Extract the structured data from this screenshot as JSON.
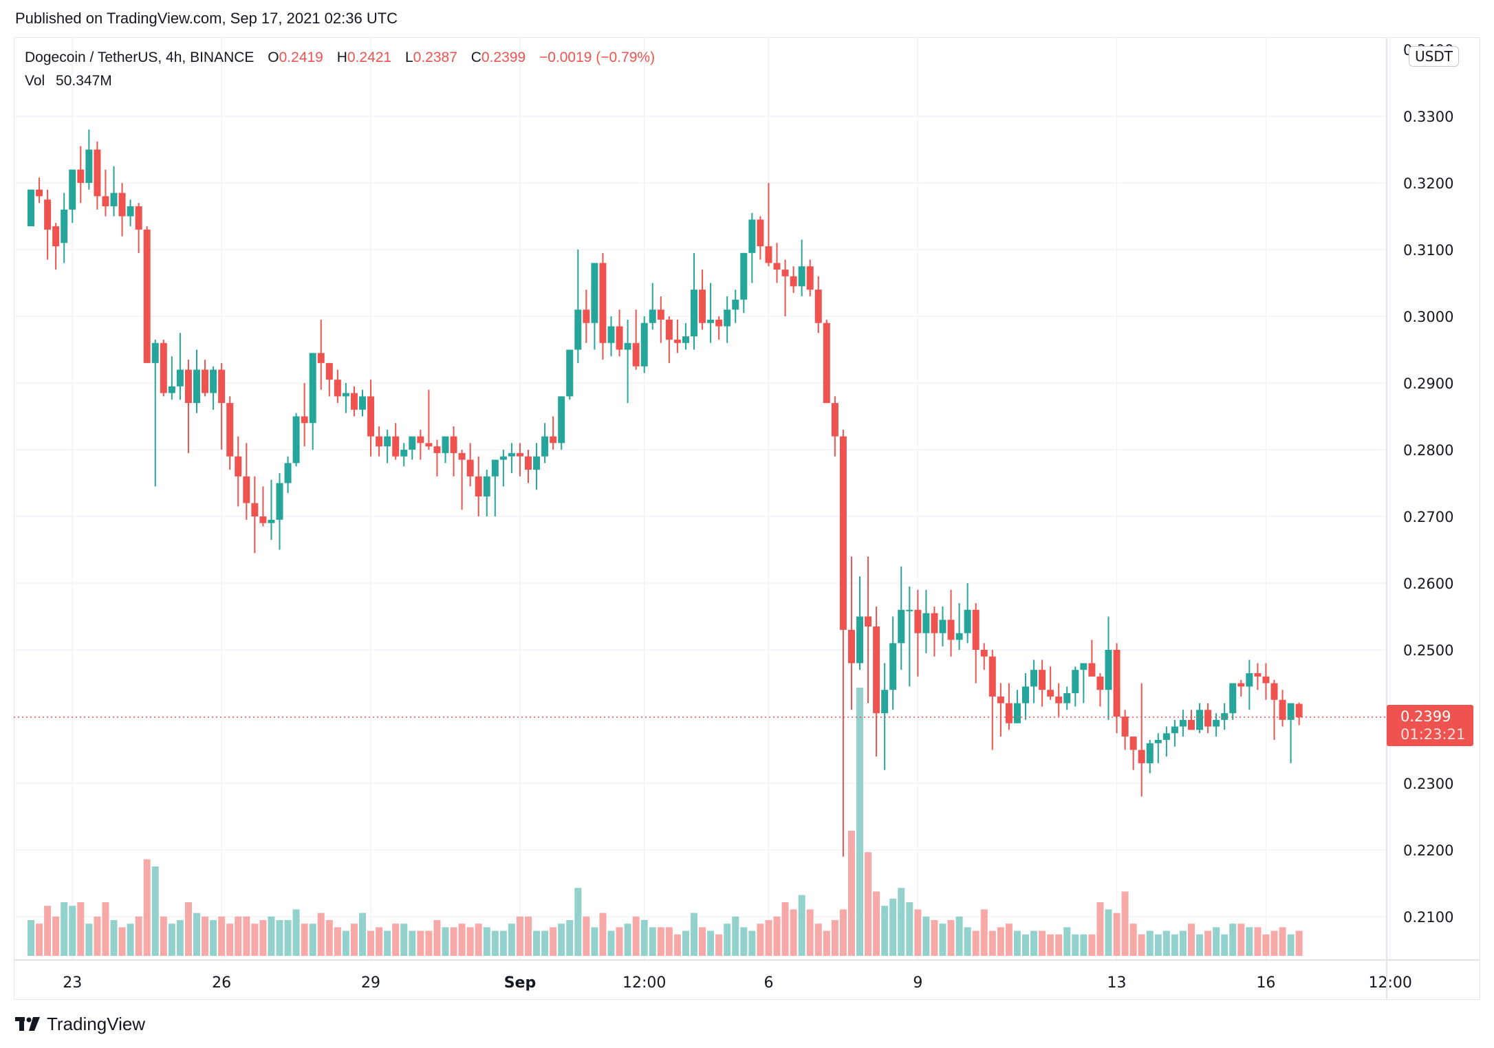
{
  "header": {
    "published": "Published on TradingView.com, Sep 17, 2021 02:36 UTC"
  },
  "legend": {
    "symbol": "Dogecoin / TetherUS, 4h, BINANCE",
    "o_label": "O",
    "o": "0.2419",
    "h_label": "H",
    "h": "0.2421",
    "l_label": "L",
    "l": "0.2387",
    "c_label": "C",
    "c": "0.2399",
    "change": "−0.0019 (−0.79%)",
    "vol_label": "Vol",
    "vol": "50.347M"
  },
  "currency_badge": "USDT",
  "price_tag": {
    "price": "0.2399",
    "countdown": "01:23:21"
  },
  "footer": {
    "brand": "TradingView"
  },
  "colors": {
    "up": "#26a69a",
    "down": "#ef5350",
    "up_vol": "#93d2cc",
    "down_vol": "#f7a9a7",
    "grid": "#f0f3fa",
    "text": "#131722"
  },
  "chart_data": {
    "type": "candlestick",
    "title": "Dogecoin / TetherUS, 4h, BINANCE",
    "ylabel": "USDT",
    "ylim": [
      0.204,
      0.342
    ],
    "y_ticks": [
      "0.3300",
      "0.3200",
      "0.3100",
      "0.3000",
      "0.2900",
      "0.2800",
      "0.2700",
      "0.2600",
      "0.2500",
      "0.2400",
      "0.2300",
      "0.2200",
      "0.2100"
    ],
    "x_ticks": [
      {
        "label": "23",
        "index": 5
      },
      {
        "label": "26",
        "index": 23
      },
      {
        "label": "29",
        "index": 41
      },
      {
        "label": "Sep",
        "index": 59
      },
      {
        "label": "12:00",
        "index": 74
      },
      {
        "label": "6",
        "index": 89
      },
      {
        "label": "9",
        "index": 107
      },
      {
        "label": "13",
        "index": 131
      },
      {
        "label": "16",
        "index": 149
      },
      {
        "label": "12:00",
        "index": 164
      }
    ],
    "last_price": 0.2399,
    "ohlc": [
      [
        0.3135,
        0.3155,
        0.3145,
        0.319
      ],
      [
        0.319,
        0.3208,
        0.317,
        0.318
      ],
      [
        0.3175,
        0.319,
        0.3085,
        0.313
      ],
      [
        0.3135,
        0.314,
        0.307,
        0.3105
      ],
      [
        0.311,
        0.3185,
        0.308,
        0.316
      ],
      [
        0.316,
        0.322,
        0.314,
        0.322
      ],
      [
        0.322,
        0.3255,
        0.317,
        0.32
      ],
      [
        0.32,
        0.328,
        0.319,
        0.325
      ],
      [
        0.325,
        0.3262,
        0.316,
        0.318
      ],
      [
        0.318,
        0.322,
        0.315,
        0.3165
      ],
      [
        0.3165,
        0.3225,
        0.315,
        0.3185
      ],
      [
        0.3185,
        0.32,
        0.312,
        0.315
      ],
      [
        0.315,
        0.3175,
        0.3135,
        0.3165
      ],
      [
        0.3165,
        0.317,
        0.3095,
        0.313
      ],
      [
        0.313,
        0.3135,
        0.299,
        0.293
      ],
      [
        0.293,
        0.2965,
        0.2745,
        0.296
      ],
      [
        0.296,
        0.2965,
        0.288,
        0.2885
      ],
      [
        0.2885,
        0.294,
        0.2875,
        0.2895
      ],
      [
        0.2895,
        0.2975,
        0.2875,
        0.292
      ],
      [
        0.292,
        0.2935,
        0.2795,
        0.287
      ],
      [
        0.287,
        0.295,
        0.2855,
        0.292
      ],
      [
        0.292,
        0.2935,
        0.288,
        0.2885
      ],
      [
        0.2885,
        0.2925,
        0.286,
        0.292
      ],
      [
        0.292,
        0.293,
        0.28,
        0.287
      ],
      [
        0.287,
        0.288,
        0.277,
        0.279
      ],
      [
        0.279,
        0.282,
        0.2715,
        0.276
      ],
      [
        0.276,
        0.281,
        0.2695,
        0.272
      ],
      [
        0.272,
        0.276,
        0.2645,
        0.27
      ],
      [
        0.27,
        0.2745,
        0.2685,
        0.269
      ],
      [
        0.269,
        0.2755,
        0.2665,
        0.2695
      ],
      [
        0.2695,
        0.2765,
        0.265,
        0.275
      ],
      [
        0.275,
        0.279,
        0.2735,
        0.278
      ],
      [
        0.278,
        0.2855,
        0.2775,
        0.285
      ],
      [
        0.285,
        0.29,
        0.2805,
        0.284
      ],
      [
        0.284,
        0.2945,
        0.28,
        0.2945
      ],
      [
        0.2945,
        0.2995,
        0.289,
        0.293
      ],
      [
        0.293,
        0.2925,
        0.288,
        0.2905
      ],
      [
        0.2905,
        0.292,
        0.287,
        0.288
      ],
      [
        0.288,
        0.29,
        0.2855,
        0.2885
      ],
      [
        0.2885,
        0.2895,
        0.285,
        0.286
      ],
      [
        0.286,
        0.289,
        0.285,
        0.288
      ],
      [
        0.288,
        0.2905,
        0.279,
        0.282
      ],
      [
        0.282,
        0.2835,
        0.279,
        0.2805
      ],
      [
        0.2805,
        0.283,
        0.278,
        0.282
      ],
      [
        0.282,
        0.284,
        0.2785,
        0.279
      ],
      [
        0.279,
        0.281,
        0.2775,
        0.28
      ],
      [
        0.28,
        0.282,
        0.2785,
        0.282
      ],
      [
        0.282,
        0.283,
        0.2785,
        0.281
      ],
      [
        0.281,
        0.289,
        0.28,
        0.2805
      ],
      [
        0.2805,
        0.2815,
        0.276,
        0.2795
      ],
      [
        0.2795,
        0.282,
        0.278,
        0.282
      ],
      [
        0.282,
        0.2835,
        0.276,
        0.2795
      ],
      [
        0.2795,
        0.28,
        0.271,
        0.2785
      ],
      [
        0.2785,
        0.281,
        0.2745,
        0.276
      ],
      [
        0.276,
        0.279,
        0.27,
        0.273
      ],
      [
        0.273,
        0.277,
        0.27,
        0.276
      ],
      [
        0.276,
        0.2785,
        0.27,
        0.2785
      ],
      [
        0.2785,
        0.28,
        0.2745,
        0.279
      ],
      [
        0.279,
        0.281,
        0.2765,
        0.2795
      ],
      [
        0.2795,
        0.281,
        0.276,
        0.279
      ],
      [
        0.279,
        0.28,
        0.275,
        0.277
      ],
      [
        0.277,
        0.281,
        0.274,
        0.279
      ],
      [
        0.279,
        0.284,
        0.278,
        0.282
      ],
      [
        0.282,
        0.285,
        0.28,
        0.281
      ],
      [
        0.281,
        0.288,
        0.28,
        0.288
      ],
      [
        0.288,
        0.295,
        0.2875,
        0.295
      ],
      [
        0.295,
        0.31,
        0.293,
        0.301
      ],
      [
        0.301,
        0.304,
        0.296,
        0.299
      ],
      [
        0.299,
        0.306,
        0.295,
        0.308
      ],
      [
        0.308,
        0.3095,
        0.2935,
        0.296
      ],
      [
        0.296,
        0.3,
        0.294,
        0.2985
      ],
      [
        0.2985,
        0.301,
        0.294,
        0.295
      ],
      [
        0.295,
        0.2995,
        0.287,
        0.296
      ],
      [
        0.296,
        0.301,
        0.292,
        0.2925
      ],
      [
        0.2925,
        0.3,
        0.2915,
        0.299
      ],
      [
        0.299,
        0.305,
        0.298,
        0.301
      ],
      [
        0.301,
        0.303,
        0.296,
        0.2995
      ],
      [
        0.2995,
        0.3,
        0.293,
        0.2965
      ],
      [
        0.2965,
        0.2995,
        0.2945,
        0.296
      ],
      [
        0.296,
        0.299,
        0.295,
        0.297
      ],
      [
        0.297,
        0.3095,
        0.295,
        0.304
      ],
      [
        0.304,
        0.307,
        0.298,
        0.299
      ],
      [
        0.299,
        0.305,
        0.296,
        0.2995
      ],
      [
        0.2995,
        0.3,
        0.2965,
        0.2985
      ],
      [
        0.2985,
        0.303,
        0.296,
        0.301
      ],
      [
        0.301,
        0.304,
        0.299,
        0.3025
      ],
      [
        0.3025,
        0.306,
        0.3005,
        0.3095
      ],
      [
        0.3095,
        0.3155,
        0.305,
        0.3145
      ],
      [
        0.3145,
        0.315,
        0.3085,
        0.3105
      ],
      [
        0.3105,
        0.32,
        0.3075,
        0.308
      ],
      [
        0.308,
        0.311,
        0.305,
        0.307
      ],
      [
        0.307,
        0.3085,
        0.3,
        0.306
      ],
      [
        0.306,
        0.3075,
        0.3035,
        0.3045
      ],
      [
        0.3045,
        0.3115,
        0.303,
        0.3075
      ],
      [
        0.3075,
        0.3085,
        0.303,
        0.304
      ],
      [
        0.304,
        0.306,
        0.2975,
        0.299
      ],
      [
        0.299,
        0.2995,
        0.296,
        0.287
      ],
      [
        0.287,
        0.288,
        0.279,
        0.282
      ],
      [
        0.282,
        0.283,
        0.219,
        0.253
      ],
      [
        0.253,
        0.264,
        0.241,
        0.248
      ],
      [
        0.248,
        0.261,
        0.247,
        0.255
      ],
      [
        0.255,
        0.264,
        0.242,
        0.2535
      ],
      [
        0.2535,
        0.2565,
        0.234,
        0.2405
      ],
      [
        0.2405,
        0.248,
        0.232,
        0.244
      ],
      [
        0.244,
        0.255,
        0.241,
        0.251
      ],
      [
        0.251,
        0.2625,
        0.247,
        0.256
      ],
      [
        0.256,
        0.2595,
        0.2445,
        0.256
      ],
      [
        0.256,
        0.259,
        0.246,
        0.2525
      ],
      [
        0.2525,
        0.259,
        0.2495,
        0.2555
      ],
      [
        0.2555,
        0.2565,
        0.249,
        0.2525
      ],
      [
        0.2525,
        0.2565,
        0.2505,
        0.2545
      ],
      [
        0.2545,
        0.259,
        0.249,
        0.2515
      ],
      [
        0.2515,
        0.257,
        0.25,
        0.2525
      ],
      [
        0.2525,
        0.26,
        0.251,
        0.256
      ],
      [
        0.256,
        0.257,
        0.245,
        0.25
      ],
      [
        0.25,
        0.251,
        0.247,
        0.249
      ],
      [
        0.249,
        0.25,
        0.235,
        0.243
      ],
      [
        0.243,
        0.245,
        0.237,
        0.242
      ],
      [
        0.242,
        0.245,
        0.238,
        0.239
      ],
      [
        0.239,
        0.244,
        0.2395,
        0.242
      ],
      [
        0.242,
        0.2465,
        0.2395,
        0.2445
      ],
      [
        0.2445,
        0.2485,
        0.242,
        0.247
      ],
      [
        0.247,
        0.2485,
        0.2415,
        0.244
      ],
      [
        0.244,
        0.2475,
        0.2425,
        0.243
      ],
      [
        0.243,
        0.245,
        0.24,
        0.242
      ],
      [
        0.242,
        0.2445,
        0.241,
        0.2435
      ],
      [
        0.2435,
        0.2475,
        0.2415,
        0.247
      ],
      [
        0.247,
        0.248,
        0.242,
        0.248
      ],
      [
        0.248,
        0.2515,
        0.2465,
        0.246
      ],
      [
        0.246,
        0.2465,
        0.2415,
        0.244
      ],
      [
        0.244,
        0.255,
        0.2395,
        0.25
      ],
      [
        0.25,
        0.251,
        0.2375,
        0.24
      ],
      [
        0.24,
        0.241,
        0.235,
        0.237
      ],
      [
        0.237,
        0.233,
        0.232,
        0.235
      ],
      [
        0.235,
        0.245,
        0.228,
        0.233
      ],
      [
        0.233,
        0.2365,
        0.2315,
        0.236
      ],
      [
        0.236,
        0.2375,
        0.233,
        0.2365
      ],
      [
        0.2365,
        0.2385,
        0.234,
        0.2375
      ],
      [
        0.2375,
        0.2395,
        0.2355,
        0.2385
      ],
      [
        0.2385,
        0.241,
        0.237,
        0.2395
      ],
      [
        0.2395,
        0.241,
        0.2385,
        0.238
      ],
      [
        0.238,
        0.242,
        0.2375,
        0.241
      ],
      [
        0.241,
        0.242,
        0.2375,
        0.2385
      ],
      [
        0.2385,
        0.2405,
        0.237,
        0.2395
      ],
      [
        0.2395,
        0.242,
        0.238,
        0.2405
      ],
      [
        0.2405,
        0.2445,
        0.2395,
        0.245
      ],
      [
        0.245,
        0.2455,
        0.243,
        0.2445
      ],
      [
        0.2445,
        0.2485,
        0.241,
        0.2465
      ],
      [
        0.2465,
        0.248,
        0.244,
        0.246
      ],
      [
        0.246,
        0.248,
        0.2425,
        0.245
      ],
      [
        0.245,
        0.2455,
        0.2365,
        0.2425
      ],
      [
        0.2425,
        0.244,
        0.2385,
        0.2395
      ],
      [
        0.2395,
        0.242,
        0.233,
        0.242
      ],
      [
        0.2419,
        0.2421,
        0.2387,
        0.2399
      ]
    ],
    "volume": [
      20,
      18,
      28,
      22,
      30,
      28,
      30,
      18,
      22,
      30,
      20,
      16,
      18,
      22,
      54,
      50,
      22,
      18,
      20,
      30,
      24,
      22,
      20,
      22,
      18,
      22,
      22,
      18,
      20,
      22,
      20,
      20,
      26,
      18,
      18,
      24,
      20,
      16,
      14,
      18,
      24,
      14,
      16,
      14,
      18,
      18,
      14,
      14,
      14,
      20,
      16,
      16,
      18,
      16,
      18,
      16,
      14,
      14,
      18,
      22,
      22,
      14,
      14,
      16,
      18,
      20,
      38,
      22,
      16,
      24,
      14,
      16,
      18,
      22,
      20,
      16,
      16,
      16,
      12,
      14,
      24,
      16,
      14,
      12,
      18,
      22,
      16,
      14,
      18,
      20,
      22,
      30,
      26,
      34,
      26,
      18,
      14,
      20,
      26,
      70,
      150,
      58,
      36,
      28,
      32,
      38,
      30,
      26,
      22,
      20,
      18,
      20,
      22,
      16,
      14,
      26,
      14,
      16,
      18,
      14,
      12,
      14,
      14,
      12,
      12,
      16,
      12,
      12,
      12,
      30,
      26,
      24,
      36,
      18,
      12,
      14,
      12,
      14,
      12,
      14,
      18,
      12,
      14,
      16,
      12,
      18,
      18,
      16,
      16,
      12,
      14,
      16,
      12,
      14,
      10
    ]
  }
}
